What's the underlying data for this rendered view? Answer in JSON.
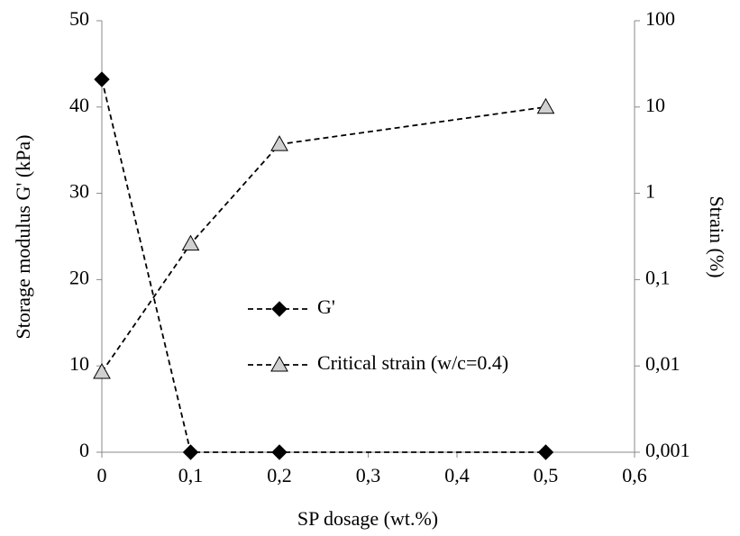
{
  "chart_data": {
    "type": "line",
    "x_label": "SP dosage (wt.%)",
    "y_label": "Storage modulus G' (kPa)",
    "y2_label": "Strain (%)",
    "x": [
      0,
      0.1,
      0.2,
      0.5
    ],
    "xlim": [
      0,
      0.6
    ],
    "xticks": [
      0,
      {
        "value": 0.1,
        "label": "0,1"
      },
      {
        "value": 0.2,
        "label": "0,2"
      },
      {
        "value": 0.3,
        "label": "0,3"
      },
      {
        "value": 0.4,
        "label": "0,4"
      },
      {
        "value": 0.5,
        "label": "0,5"
      },
      {
        "value": 0.6,
        "label": "0,6"
      }
    ],
    "ylim": [
      0,
      50
    ],
    "yticks": [
      0,
      10,
      20,
      30,
      40,
      50
    ],
    "y2lim": [
      0.001,
      100
    ],
    "y2log": true,
    "y2ticks": [
      {
        "value": 0.001,
        "label": "0,001"
      },
      {
        "value": 0.01,
        "label": "0,01"
      },
      {
        "value": 0.1,
        "label": "0,1"
      },
      1,
      10,
      100
    ],
    "series": [
      {
        "name": "G'",
        "color": "#000000",
        "marker": "diamond",
        "values": [
          43.2,
          0,
          0,
          0
        ]
      },
      {
        "name": "Critical strain (w/c=0.4)",
        "color": "#d0d0d0",
        "marker": "triangle",
        "axis": "y2",
        "values": [
          0.0085,
          0.26,
          3.7,
          10
        ]
      }
    ]
  }
}
